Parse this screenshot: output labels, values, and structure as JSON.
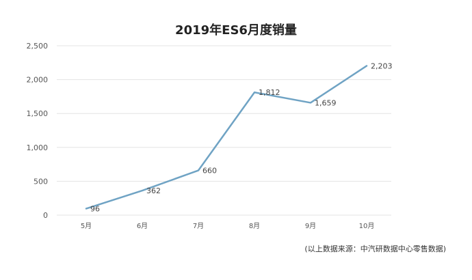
{
  "chart_data": {
    "type": "line",
    "title": "2019年ES6月度销量",
    "categories": [
      "5月",
      "6月",
      "7月",
      "8月",
      "9月",
      "10月"
    ],
    "series": [
      {
        "values": [
          96,
          362,
          660,
          1812,
          1659,
          2203
        ]
      }
    ],
    "data_labels": [
      "96",
      "362",
      "660",
      "1,812",
      "1,659",
      "2,203"
    ],
    "y_ticks": [
      "0",
      "500",
      "1,000",
      "1,500",
      "2,000",
      "2,500"
    ],
    "y_tick_values": [
      0,
      500,
      1000,
      1500,
      2000,
      2500
    ],
    "ylim": [
      0,
      2500
    ],
    "grid": true,
    "line_color": "#6fa3c4",
    "grid_color": "#e3e3e3"
  },
  "footer": {
    "source_note": "(以上数据来源：中汽研数据中心零售数据)"
  }
}
